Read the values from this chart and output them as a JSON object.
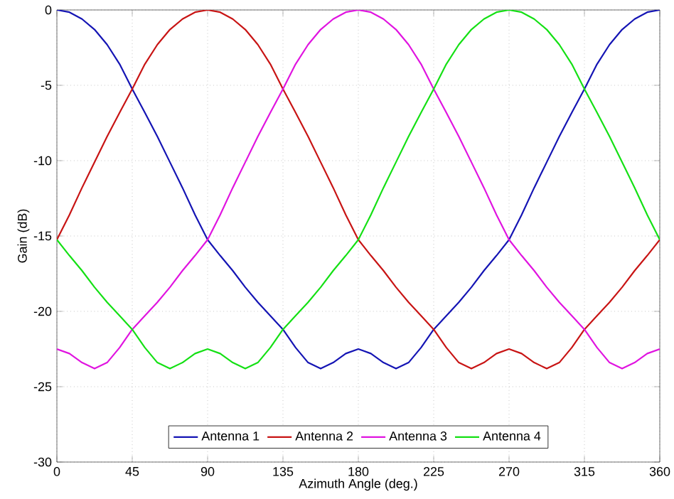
{
  "chart_data": {
    "type": "line",
    "xlabel": "Azimuth Angle (deg.)",
    "ylabel": "Gain (dB)",
    "x": [
      0,
      7.5,
      15,
      22.5,
      30,
      37.5,
      45,
      52.5,
      60,
      67.5,
      75,
      82.5,
      90,
      97.5,
      105,
      112.5,
      120,
      127.5,
      135,
      142.5,
      150,
      157.5,
      165,
      172.5,
      180,
      187.5,
      195,
      202.5,
      210,
      217.5,
      225,
      232.5,
      240,
      247.5,
      255,
      262.5,
      270,
      277.5,
      285,
      292.5,
      300,
      307.5,
      315,
      322.5,
      330,
      337.5,
      345,
      352.5,
      360
    ],
    "series": [
      {
        "name": "Antenna 1",
        "color": "#1414b4",
        "values": [
          0,
          -0.15,
          -0.6,
          -1.3,
          -2.3,
          -3.6,
          -5.25,
          -6.8,
          -8.4,
          -10.1,
          -11.8,
          -13.6,
          -15.25,
          -16.3,
          -17.3,
          -18.4,
          -19.4,
          -20.3,
          -21.2,
          -22.4,
          -23.4,
          -23.8,
          -23.4,
          -22.8,
          -22.5,
          -22.8,
          -23.4,
          -23.8,
          -23.4,
          -22.4,
          -21.2,
          -20.3,
          -19.4,
          -18.4,
          -17.3,
          -16.3,
          -15.25,
          -13.6,
          -11.8,
          -10.1,
          -8.4,
          -6.8,
          -5.25,
          -3.6,
          -2.3,
          -1.3,
          -0.6,
          -0.15,
          0
        ]
      },
      {
        "name": "Antenna 2",
        "color": "#c81414",
        "values": [
          -15.25,
          -13.6,
          -11.8,
          -10.1,
          -8.4,
          -6.8,
          -5.25,
          -3.6,
          -2.3,
          -1.3,
          -0.6,
          -0.15,
          0,
          -0.15,
          -0.6,
          -1.3,
          -2.3,
          -3.6,
          -5.25,
          -6.8,
          -8.4,
          -10.1,
          -11.8,
          -13.6,
          -15.25,
          -16.3,
          -17.3,
          -18.4,
          -19.4,
          -20.3,
          -21.2,
          -22.4,
          -23.4,
          -23.8,
          -23.4,
          -22.8,
          -22.5,
          -22.8,
          -23.4,
          -23.8,
          -23.4,
          -22.4,
          -21.2,
          -20.3,
          -19.4,
          -18.4,
          -17.3,
          -16.3,
          -15.25
        ]
      },
      {
        "name": "Antenna 3",
        "color": "#e014e0",
        "values": [
          -22.5,
          -22.8,
          -23.4,
          -23.8,
          -23.4,
          -22.4,
          -21.2,
          -20.3,
          -19.4,
          -18.4,
          -17.3,
          -16.3,
          -15.25,
          -13.6,
          -11.8,
          -10.1,
          -8.4,
          -6.8,
          -5.25,
          -3.6,
          -2.3,
          -1.3,
          -0.6,
          -0.15,
          0,
          -0.15,
          -0.6,
          -1.3,
          -2.3,
          -3.6,
          -5.25,
          -6.8,
          -8.4,
          -10.1,
          -11.8,
          -13.6,
          -15.25,
          -16.3,
          -17.3,
          -18.4,
          -19.4,
          -20.3,
          -21.2,
          -22.4,
          -23.4,
          -23.8,
          -23.4,
          -22.8,
          -22.5
        ]
      },
      {
        "name": "Antenna 4",
        "color": "#14e014",
        "values": [
          -15.25,
          -16.3,
          -17.3,
          -18.4,
          -19.4,
          -20.3,
          -21.2,
          -22.4,
          -23.4,
          -23.8,
          -23.4,
          -22.8,
          -22.5,
          -22.8,
          -23.4,
          -23.8,
          -23.4,
          -22.4,
          -21.2,
          -20.3,
          -19.4,
          -18.4,
          -17.3,
          -16.3,
          -15.25,
          -13.6,
          -11.8,
          -10.1,
          -8.4,
          -6.8,
          -5.25,
          -3.6,
          -2.3,
          -1.3,
          -0.6,
          -0.15,
          0,
          -0.15,
          -0.6,
          -1.3,
          -2.3,
          -3.6,
          -5.25,
          -6.8,
          -8.4,
          -10.1,
          -11.8,
          -13.6,
          -15.25
        ]
      }
    ],
    "xlim": [
      0,
      360
    ],
    "ylim": [
      -30,
      0
    ],
    "xticks": [
      0,
      45,
      90,
      135,
      180,
      225,
      270,
      315,
      360
    ],
    "yticks": [
      -30,
      -25,
      -20,
      -15,
      -10,
      -5,
      0
    ],
    "grid": true,
    "legend": "bottom",
    "marker": "none",
    "line_style": "solid"
  }
}
